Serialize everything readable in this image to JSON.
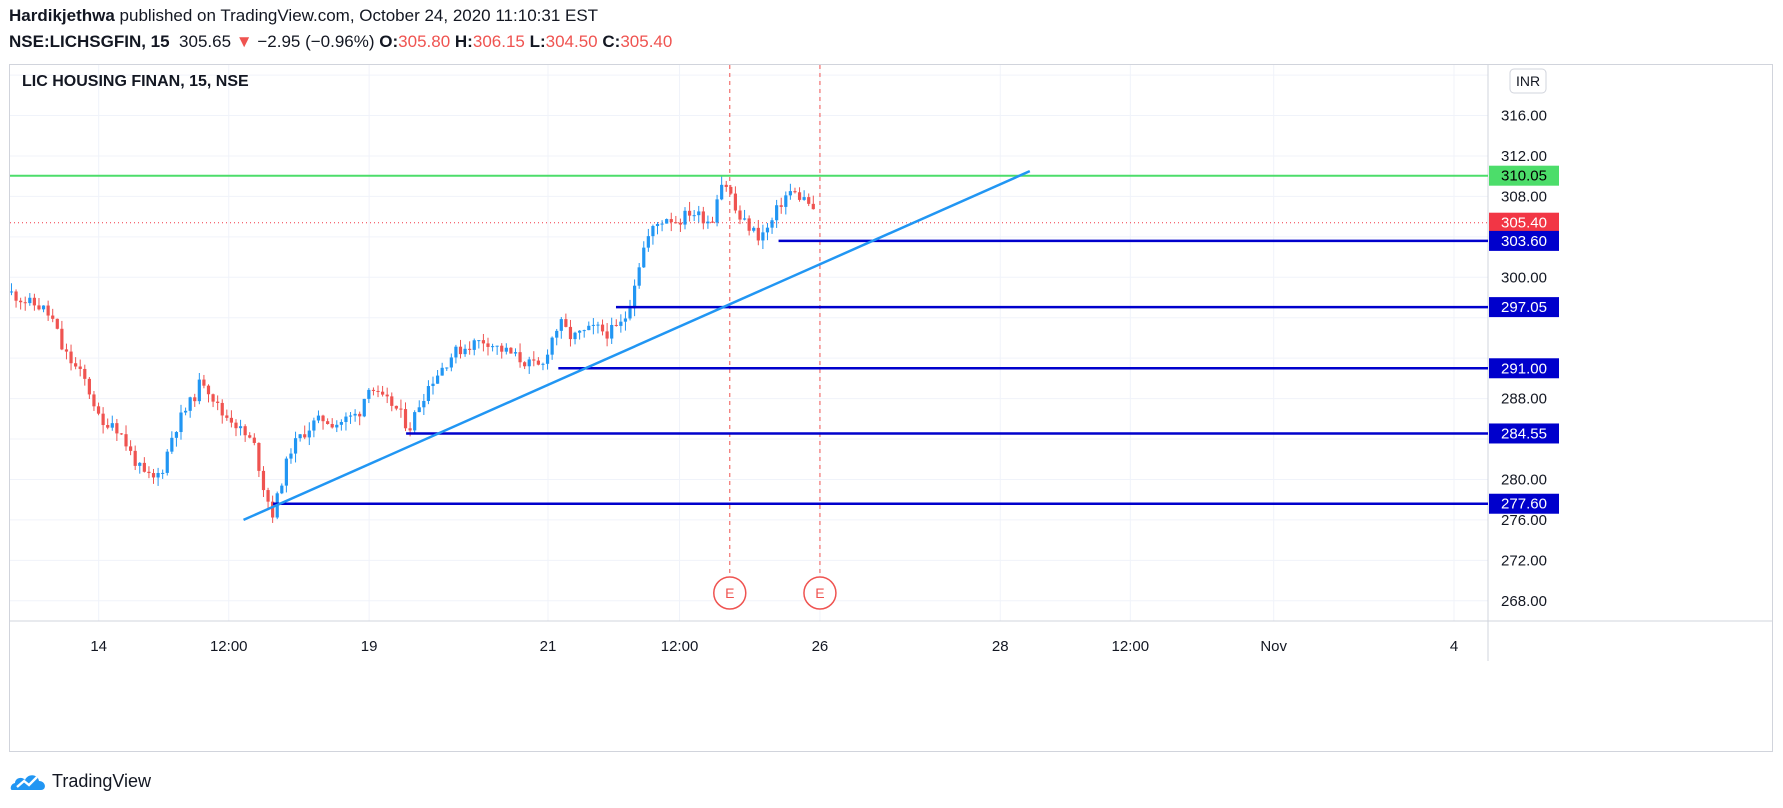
{
  "header": {
    "author": "Hardikjethwa",
    "published_text": "published on TradingView.com, October 24, 2020 11:10:31 EST",
    "symbol": "NSE:LICHSGFIN, 15",
    "last": "305.65",
    "change_arrow": "▼",
    "change": "−2.95 (−0.96%)",
    "o_label": "O:",
    "o_value": "305.80",
    "h_label": "H:",
    "h_value": "306.15",
    "l_label": "L:",
    "l_value": "304.50",
    "c_label": "C:",
    "c_value": "305.40"
  },
  "colors": {
    "up": "#2196f3",
    "down": "#ef5350",
    "support": "#0000cc",
    "resistance": "#4cdd6a",
    "trendline": "#2196f3",
    "last_price": "#f23645"
  },
  "footer": {
    "logo_icon": "tradingview-cloud-icon",
    "brand": "TradingView"
  },
  "chart_data": {
    "type": "candlestick",
    "title": "LIC HOUSING FINAN, 15, NSE",
    "currency": "INR",
    "y_ticks": [
      "316.00",
      "312.00",
      "308.00",
      "300.00",
      "288.00",
      "280.00",
      "276.00",
      "272.00",
      "268.00"
    ],
    "x_ticks": [
      "14",
      "12:00",
      "19",
      "21",
      "12:00",
      "26",
      "28",
      "12:00",
      "Nov",
      "4"
    ],
    "ylim": [
      266,
      321
    ],
    "price_scale_labels": [
      {
        "value": 310.05,
        "text": "310.05",
        "kind": "resistance"
      },
      {
        "value": 305.4,
        "text": "305.40",
        "kind": "last"
      },
      {
        "value": 303.6,
        "text": "303.60",
        "kind": "support"
      },
      {
        "value": 297.05,
        "text": "297.05",
        "kind": "support"
      },
      {
        "value": 291.0,
        "text": "291.00",
        "kind": "support"
      },
      {
        "value": 284.55,
        "text": "284.55",
        "kind": "support"
      },
      {
        "value": 277.6,
        "text": "277.60",
        "kind": "support"
      }
    ],
    "horizontal_lines": [
      {
        "value": 310.05,
        "kind": "resistance",
        "from_x": 0
      },
      {
        "value": 303.6,
        "kind": "support",
        "from_x": 0.52
      },
      {
        "value": 297.05,
        "kind": "support",
        "from_x": 0.41
      },
      {
        "value": 291.0,
        "kind": "support",
        "from_x": 0.371
      },
      {
        "value": 284.55,
        "kind": "support",
        "from_x": 0.268
      },
      {
        "value": 277.6,
        "kind": "support",
        "from_x": 0.178
      }
    ],
    "last_price": 305.4,
    "trendline": {
      "x1": 0.158,
      "y1": 276.0,
      "x2": 0.69,
      "y2": 310.5
    },
    "events": [
      {
        "x": 0.487,
        "label": "E"
      },
      {
        "x": 0.548,
        "label": "E"
      }
    ],
    "close_path": [
      [
        0.0,
        298.5
      ],
      [
        0.012,
        297.5
      ],
      [
        0.022,
        297.0
      ],
      [
        0.03,
        295.5
      ],
      [
        0.035,
        293.0
      ],
      [
        0.042,
        291.5
      ],
      [
        0.05,
        290.0
      ],
      [
        0.057,
        287.5
      ],
      [
        0.062,
        285.0
      ],
      [
        0.068,
        286.0
      ],
      [
        0.075,
        284.5
      ],
      [
        0.082,
        282.5
      ],
      [
        0.09,
        280.5
      ],
      [
        0.097,
        280.0
      ],
      [
        0.103,
        281.0
      ],
      [
        0.11,
        284.5
      ],
      [
        0.117,
        286.5
      ],
      [
        0.124,
        288.0
      ],
      [
        0.13,
        290.0
      ],
      [
        0.136,
        288.5
      ],
      [
        0.143,
        286.5
      ],
      [
        0.15,
        286.0
      ],
      [
        0.158,
        284.5
      ],
      [
        0.165,
        283.5
      ],
      [
        0.172,
        279.0
      ],
      [
        0.178,
        276.5
      ],
      [
        0.184,
        280.0
      ],
      [
        0.19,
        283.0
      ],
      [
        0.198,
        284.5
      ],
      [
        0.205,
        285.5
      ],
      [
        0.212,
        286.0
      ],
      [
        0.22,
        285.5
      ],
      [
        0.228,
        286.0
      ],
      [
        0.236,
        286.5
      ],
      [
        0.243,
        289.5
      ],
      [
        0.25,
        288.0
      ],
      [
        0.258,
        287.5
      ],
      [
        0.264,
        286.5
      ],
      [
        0.27,
        285.0
      ],
      [
        0.277,
        287.5
      ],
      [
        0.284,
        289.5
      ],
      [
        0.292,
        291.0
      ],
      [
        0.3,
        292.5
      ],
      [
        0.307,
        293.0
      ],
      [
        0.314,
        293.5
      ],
      [
        0.322,
        293.8
      ],
      [
        0.33,
        293.0
      ],
      [
        0.338,
        292.5
      ],
      [
        0.346,
        291.8
      ],
      [
        0.353,
        291.3
      ],
      [
        0.36,
        291.0
      ],
      [
        0.365,
        293.5
      ],
      [
        0.372,
        295.5
      ],
      [
        0.38,
        294.0
      ],
      [
        0.388,
        294.5
      ],
      [
        0.396,
        295.0
      ],
      [
        0.404,
        294.5
      ],
      [
        0.412,
        295.0
      ],
      [
        0.418,
        296.5
      ],
      [
        0.424,
        300.5
      ],
      [
        0.43,
        303.5
      ],
      [
        0.436,
        305.0
      ],
      [
        0.444,
        306.0
      ],
      [
        0.452,
        305.5
      ],
      [
        0.46,
        306.5
      ],
      [
        0.468,
        306.0
      ],
      [
        0.475,
        305.5
      ],
      [
        0.48,
        309.5
      ],
      [
        0.486,
        309.0
      ],
      [
        0.492,
        306.0
      ],
      [
        0.5,
        305.0
      ],
      [
        0.507,
        304.0
      ],
      [
        0.514,
        305.0
      ],
      [
        0.52,
        307.0
      ],
      [
        0.527,
        308.5
      ],
      [
        0.534,
        308.0
      ],
      [
        0.54,
        307.5
      ],
      [
        0.546,
        305.4
      ]
    ]
  }
}
